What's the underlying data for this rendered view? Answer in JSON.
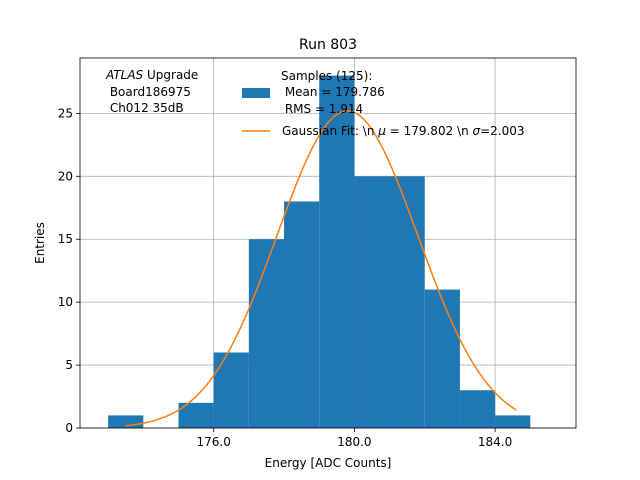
{
  "chart_data": {
    "type": "bar",
    "title": "Run 803",
    "xlabel": "Energy [ADC Counts]",
    "ylabel": "Entries",
    "xlim": [
      172.2,
      186.3
    ],
    "ylim": [
      0,
      29.4
    ],
    "xticks": [
      176.0,
      180.0,
      184.0
    ],
    "xtick_labels": [
      "176.0",
      "180.0",
      "184.0"
    ],
    "yticks": [
      0,
      5,
      10,
      15,
      20,
      25
    ],
    "ytick_labels": [
      "0",
      "5",
      "10",
      "15",
      "20",
      "25"
    ],
    "grid": true,
    "histogram": {
      "name": "Samples (125)",
      "bin_edges": [
        173.0,
        174.0,
        175.0,
        176.0,
        177.0,
        178.0,
        179.0,
        180.0,
        181.0,
        182.0,
        183.0,
        184.0,
        185.0
      ],
      "counts": [
        1,
        0,
        2,
        6,
        15,
        18,
        28,
        20,
        20,
        11,
        3,
        1
      ],
      "color": "#1f77b4"
    },
    "fit": {
      "name": "Gaussian Fit",
      "mu": 179.802,
      "sigma": 2.003,
      "amplitude": 25.2,
      "x_range": [
        173.5,
        184.6
      ],
      "color": "#ff7f0e"
    },
    "legend": {
      "position": "top-center",
      "hist_lines": [
        "Samples (125):",
        " Mean = 179.786",
        " RMS = 1.914"
      ],
      "fit_label_prefix": "Gaussian Fit: \\n ",
      "fit_mu_symbol": "μ",
      "fit_mu_text": " = 179.802 \\n ",
      "fit_sigma_symbol": "σ",
      "fit_sigma_text": "=2.003"
    },
    "annotation": {
      "position": "top-left",
      "italic_word": "ATLAS",
      "first_line_rest": " Upgrade",
      "lines": [
        " Board186975",
        " Ch012 35dB"
      ]
    }
  }
}
